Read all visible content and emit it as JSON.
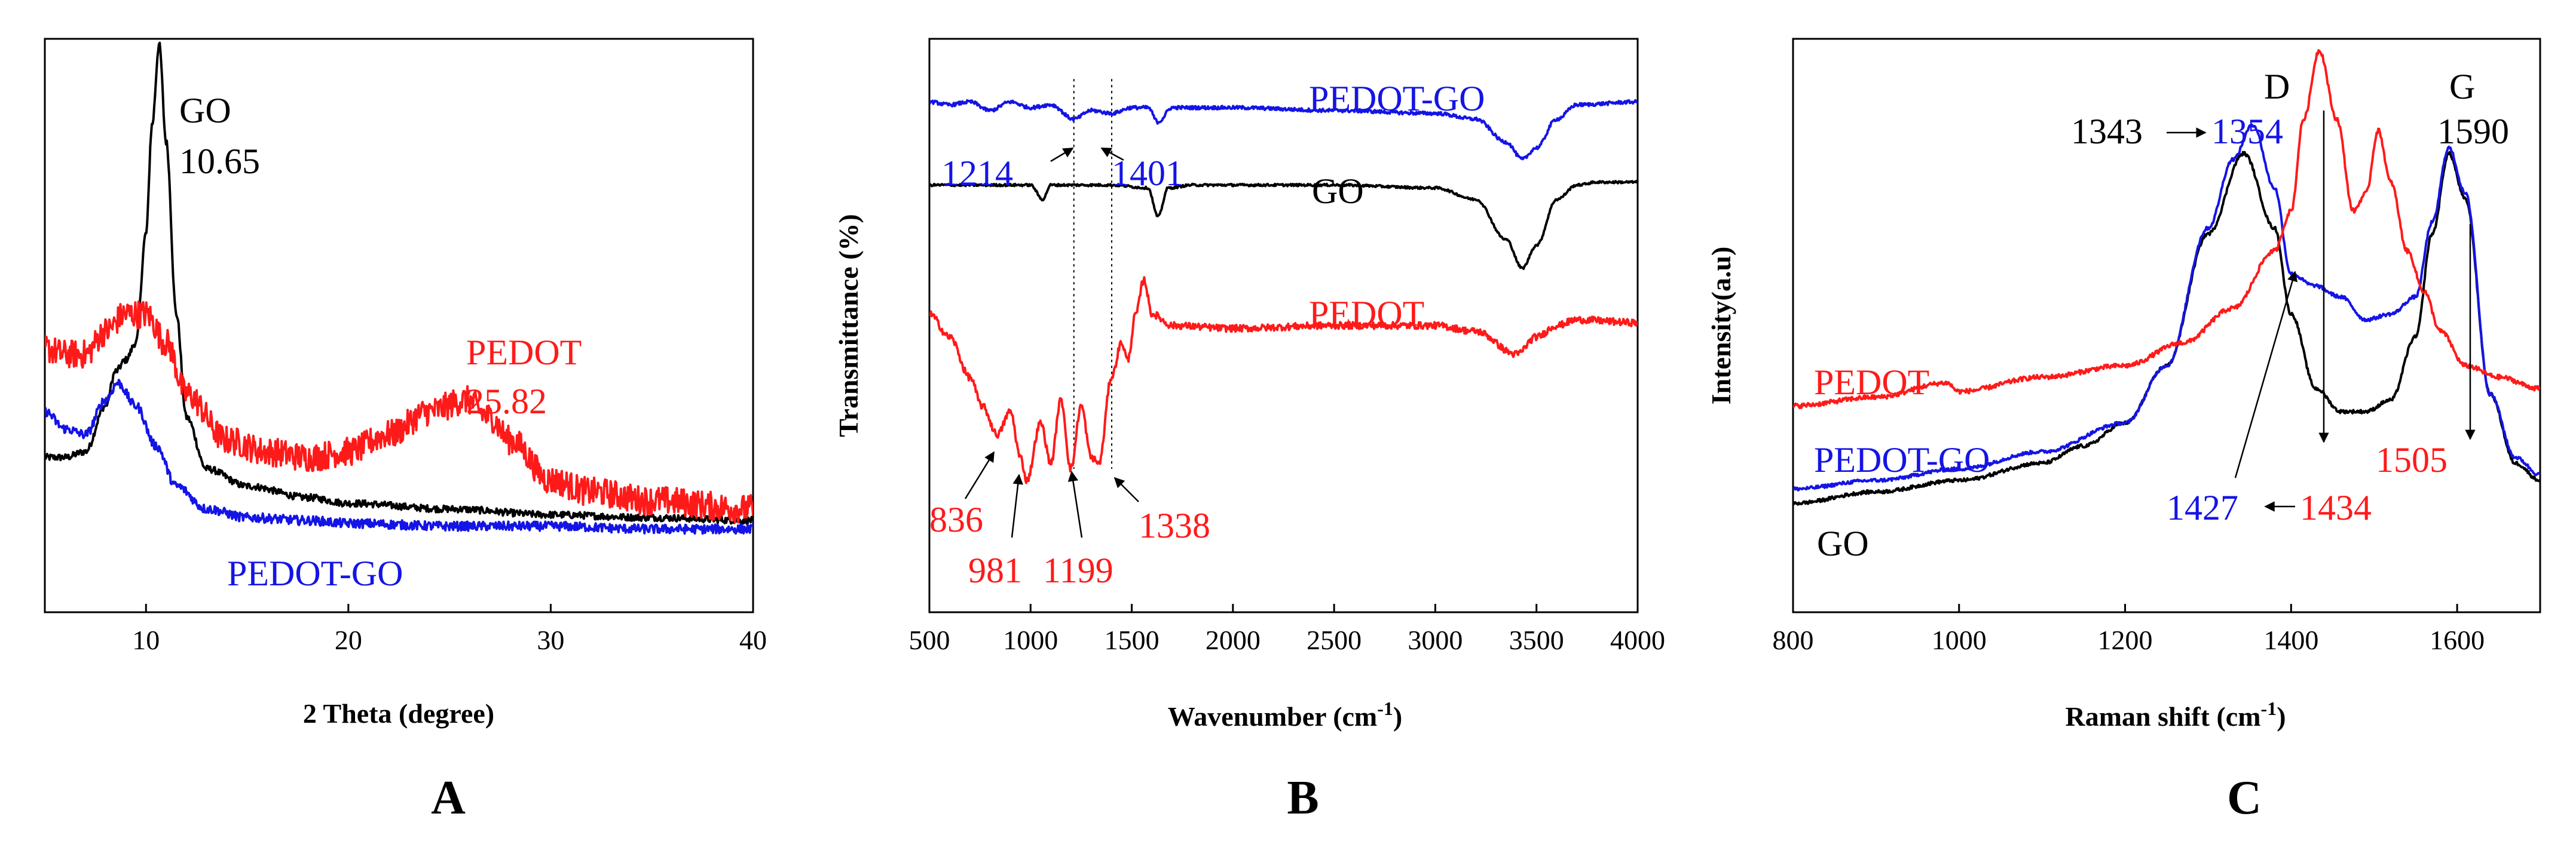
{
  "colors": {
    "black": "#000000",
    "red": "#ff1a1a",
    "blue": "#1414e6"
  },
  "chart_data": [
    {
      "panel": "A",
      "type": "line",
      "xlabel": "2 Theta (degree)",
      "ylabel": "",
      "xlim": [
        5,
        40
      ],
      "ylim": [
        0,
        1
      ],
      "xticks": [
        10,
        20,
        30,
        40
      ],
      "series": [
        {
          "name": "GO",
          "color": "#000000",
          "noise": 0.006,
          "x": [
            5,
            6,
            7,
            8,
            8.5,
            9,
            9.5,
            10,
            10.3,
            10.65,
            11,
            11.5,
            12,
            13,
            15,
            18,
            20,
            25,
            30,
            35,
            40
          ],
          "values": [
            0.27,
            0.27,
            0.28,
            0.36,
            0.42,
            0.44,
            0.47,
            0.66,
            0.85,
            0.99,
            0.82,
            0.52,
            0.34,
            0.25,
            0.22,
            0.2,
            0.19,
            0.18,
            0.17,
            0.165,
            0.16
          ]
        },
        {
          "name": "PEDOT",
          "color": "#ff1a1a",
          "noise": 0.025,
          "x": [
            5,
            6,
            7,
            8,
            9,
            10,
            11,
            12,
            14,
            16,
            18,
            20,
            22,
            24,
            25.82,
            27,
            28,
            30,
            32,
            35,
            40
          ],
          "values": [
            0.46,
            0.45,
            0.45,
            0.49,
            0.52,
            0.52,
            0.47,
            0.38,
            0.3,
            0.28,
            0.27,
            0.28,
            0.31,
            0.35,
            0.37,
            0.34,
            0.3,
            0.23,
            0.21,
            0.195,
            0.18
          ]
        },
        {
          "name": "PEDOT-GO",
          "color": "#1414e6",
          "noise": 0.008,
          "x": [
            5,
            6,
            7,
            8,
            8.6,
            9.5,
            10.5,
            11.5,
            13,
            15,
            18,
            20,
            25,
            30,
            35,
            40
          ],
          "values": [
            0.35,
            0.32,
            0.31,
            0.37,
            0.4,
            0.36,
            0.29,
            0.22,
            0.18,
            0.165,
            0.16,
            0.155,
            0.15,
            0.15,
            0.145,
            0.145
          ]
        }
      ],
      "annotations": [
        {
          "text": "GO",
          "color": "#000000"
        },
        {
          "text": "10.65",
          "color": "#000000"
        },
        {
          "text": "PEDOT",
          "color": "#ff1a1a"
        },
        {
          "text": "25.82",
          "color": "#ff1a1a"
        },
        {
          "text": "PEDOT-GO",
          "color": "#1414e6"
        }
      ]
    },
    {
      "panel": "B",
      "type": "line",
      "xlabel": "Wavenumber (cm",
      "xlabel_sup": "-1",
      "xlabel_suffix": ")",
      "ylabel": "Transmittance (%)",
      "xlim": [
        500,
        4000
      ],
      "ylim": [
        0,
        1
      ],
      "xticks": [
        500,
        1000,
        1500,
        2000,
        2500,
        3000,
        3500,
        4000
      ],
      "series": [
        {
          "name": "PEDOT-GO",
          "color": "#1414e6",
          "noise": 0.003,
          "x": [
            500,
            600,
            700,
            800,
            900,
            1000,
            1100,
            1214,
            1300,
            1401,
            1500,
            1580,
            1630,
            1700,
            2000,
            2500,
            3000,
            3200,
            3350,
            3430,
            3500,
            3600,
            3700,
            4000
          ],
          "values": [
            0.89,
            0.885,
            0.89,
            0.875,
            0.89,
            0.88,
            0.885,
            0.86,
            0.875,
            0.87,
            0.88,
            0.88,
            0.855,
            0.88,
            0.88,
            0.875,
            0.87,
            0.86,
            0.82,
            0.79,
            0.81,
            0.86,
            0.885,
            0.89
          ]
        },
        {
          "name": "GO",
          "color": "#000000",
          "noise": 0.002,
          "x": [
            500,
            800,
            1000,
            1060,
            1100,
            1200,
            1400,
            1580,
            1630,
            1680,
            1800,
            2500,
            3000,
            3200,
            3350,
            3430,
            3500,
            3600,
            3700,
            3800,
            4000
          ],
          "values": [
            0.745,
            0.745,
            0.745,
            0.72,
            0.745,
            0.745,
            0.745,
            0.74,
            0.69,
            0.74,
            0.745,
            0.745,
            0.74,
            0.72,
            0.65,
            0.6,
            0.64,
            0.72,
            0.745,
            0.75,
            0.75
          ]
        },
        {
          "name": "PEDOT",
          "color": "#ff1a1a",
          "noise": 0.006,
          "x": [
            500,
            600,
            700,
            760,
            836,
            900,
            950,
            981,
            1050,
            1100,
            1150,
            1199,
            1250,
            1300,
            1338,
            1400,
            1450,
            1480,
            1520,
            1560,
            1600,
            1700,
            2000,
            2500,
            3000,
            3200,
            3400,
            3500,
            3600,
            3700,
            4000
          ],
          "values": [
            0.52,
            0.48,
            0.41,
            0.36,
            0.31,
            0.35,
            0.27,
            0.23,
            0.33,
            0.26,
            0.37,
            0.25,
            0.36,
            0.27,
            0.26,
            0.41,
            0.47,
            0.44,
            0.52,
            0.58,
            0.52,
            0.5,
            0.495,
            0.5,
            0.5,
            0.49,
            0.45,
            0.48,
            0.5,
            0.51,
            0.505
          ]
        }
      ],
      "annotations": [
        {
          "text": "PEDOT-GO",
          "color": "#1414e6"
        },
        {
          "text": "1214",
          "color": "#1414e6"
        },
        {
          "text": "1401",
          "color": "#1414e6"
        },
        {
          "text": "GO",
          "color": "#000000"
        },
        {
          "text": "PEDOT",
          "color": "#ff1a1a"
        },
        {
          "text": "836",
          "color": "#ff1a1a"
        },
        {
          "text": "981",
          "color": "#ff1a1a"
        },
        {
          "text": "1199",
          "color": "#ff1a1a"
        },
        {
          "text": "1338",
          "color": "#ff1a1a"
        }
      ],
      "reference_lines_x": [
        1214,
        1401
      ]
    },
    {
      "panel": "C",
      "type": "line",
      "xlabel": "Raman shift (cm",
      "xlabel_sup": "-1",
      "xlabel_suffix": ")",
      "ylabel": "Intensity(a.u)",
      "xlim": [
        800,
        1700
      ],
      "ylim": [
        0,
        1
      ],
      "xticks": [
        800,
        1000,
        1200,
        1400,
        1600
      ],
      "series": [
        {
          "name": "GO",
          "color": "#000000",
          "noise": 0.003,
          "x": [
            800,
            900,
            1000,
            1100,
            1150,
            1200,
            1250,
            1300,
            1343,
            1380,
            1400,
            1430,
            1460,
            1490,
            1520,
            1550,
            1570,
            1590,
            1610,
            1640,
            1670,
            1700
          ],
          "values": [
            0.19,
            0.21,
            0.23,
            0.26,
            0.29,
            0.33,
            0.43,
            0.66,
            0.8,
            0.67,
            0.52,
            0.39,
            0.35,
            0.35,
            0.37,
            0.48,
            0.66,
            0.8,
            0.72,
            0.38,
            0.26,
            0.23
          ]
        },
        {
          "name": "PEDOT-GO",
          "color": "#1414e6",
          "noise": 0.003,
          "x": [
            800,
            900,
            1000,
            1100,
            1200,
            1250,
            1300,
            1330,
            1354,
            1380,
            1400,
            1427,
            1460,
            1490,
            1520,
            1550,
            1570,
            1590,
            1610,
            1640,
            1670,
            1700
          ],
          "values": [
            0.215,
            0.23,
            0.25,
            0.28,
            0.33,
            0.43,
            0.67,
            0.79,
            0.85,
            0.74,
            0.59,
            0.57,
            0.55,
            0.51,
            0.52,
            0.55,
            0.68,
            0.81,
            0.73,
            0.38,
            0.27,
            0.24
          ]
        },
        {
          "name": "PEDOT",
          "color": "#ff1a1a",
          "noise": 0.004,
          "x": [
            800,
            900,
            985,
            1000,
            1100,
            1200,
            1270,
            1330,
            1380,
            1400,
            1415,
            1434,
            1455,
            1475,
            1490,
            1505,
            1520,
            1540,
            1560,
            1580,
            1610,
            1650,
            1700
          ],
          "values": [
            0.36,
            0.375,
            0.4,
            0.385,
            0.41,
            0.43,
            0.47,
            0.53,
            0.63,
            0.7,
            0.86,
            0.98,
            0.86,
            0.7,
            0.73,
            0.84,
            0.75,
            0.63,
            0.56,
            0.49,
            0.43,
            0.41,
            0.39
          ]
        }
      ],
      "annotations": [
        {
          "text": "D",
          "color": "#000000"
        },
        {
          "text": "G",
          "color": "#000000"
        },
        {
          "text": "1590",
          "color": "#000000"
        },
        {
          "text": "1343",
          "color": "#000000"
        },
        {
          "text": "1354",
          "color": "#1414e6"
        },
        {
          "text": "PEDOT",
          "color": "#ff1a1a"
        },
        {
          "text": "PEDOT-GO",
          "color": "#1414e6"
        },
        {
          "text": "GO",
          "color": "#000000"
        },
        {
          "text": "1427",
          "color": "#1414e6"
        },
        {
          "text": "1434",
          "color": "#ff1a1a"
        },
        {
          "text": "1505",
          "color": "#ff1a1a"
        }
      ]
    }
  ]
}
